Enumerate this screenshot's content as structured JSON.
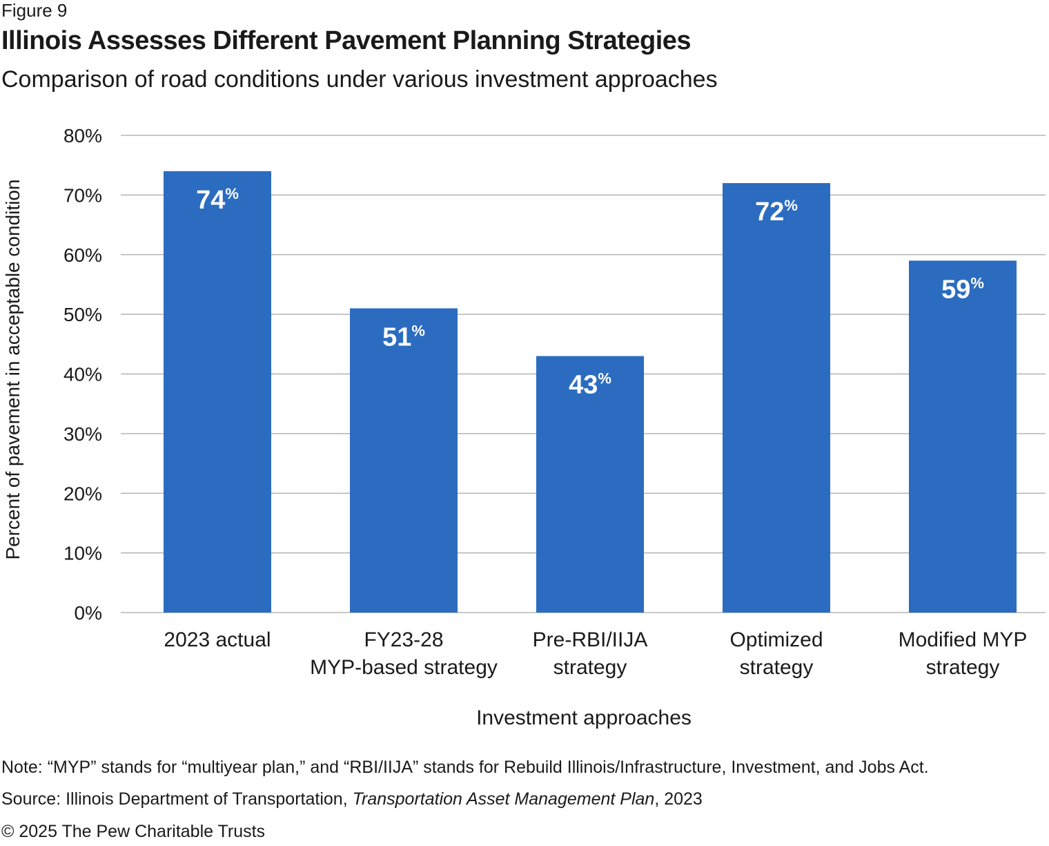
{
  "figure_label": "Figure 9",
  "title": "Illinois Assesses Different Pavement Planning Strategies",
  "subtitle": "Comparison of road conditions under various investment approaches",
  "chart_data": {
    "type": "bar",
    "categories": [
      [
        "2023 actual"
      ],
      [
        "FY23-28",
        "MYP-based strategy"
      ],
      [
        "Pre-RBI/IIJA",
        "strategy"
      ],
      [
        "Optimized",
        "strategy"
      ],
      [
        "Modified MYP",
        "strategy"
      ]
    ],
    "values": [
      74,
      51,
      43,
      72,
      59
    ],
    "value_suffix": "%",
    "ylabel": "Percent of pavement in acceptable condition",
    "xlabel": "Investment approaches",
    "ylim": [
      0,
      80
    ],
    "yticks": [
      0,
      10,
      20,
      30,
      40,
      50,
      60,
      70,
      80
    ],
    "ytick_labels": [
      "0%",
      "10%",
      "20%",
      "30%",
      "40%",
      "50%",
      "60%",
      "70%",
      "80%"
    ],
    "grid": true,
    "bar_color": "#2b6cc0",
    "grid_color": "#a6a6a6",
    "label_color": "#ffffff"
  },
  "footer": {
    "note": "Note: “MYP” stands for “multiyear plan,” and “RBI/IIJA” stands for Rebuild Illinois/Infrastructure, Investment, and Jobs Act.",
    "source_prefix": "Source: Illinois Department of Transportation, ",
    "source_title": "Transportation Asset Management Plan",
    "source_suffix": ", 2023",
    "copyright": "© 2025 The Pew Charitable Trusts"
  }
}
